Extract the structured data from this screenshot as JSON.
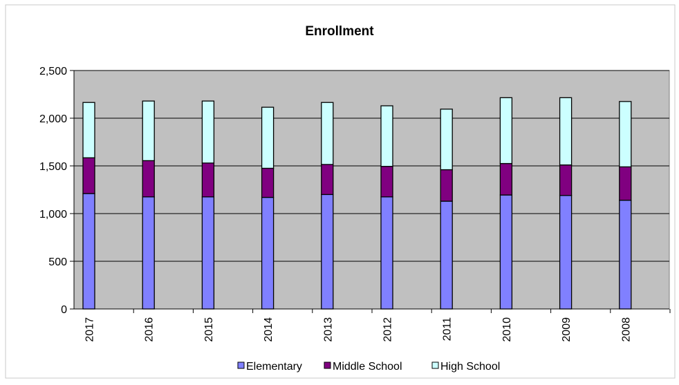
{
  "chart_data": {
    "type": "bar",
    "stacked": true,
    "title": "Enrollment",
    "xlabel": "",
    "ylabel": "",
    "categories": [
      "2017",
      "2016",
      "2015",
      "2014",
      "2013",
      "2012",
      "2011",
      "2010",
      "2009",
      "2008"
    ],
    "series": [
      {
        "name": "Elementary",
        "color": "#8080ff",
        "values": [
          1210,
          1175,
          1175,
          1170,
          1200,
          1175,
          1130,
          1195,
          1190,
          1140
        ]
      },
      {
        "name": "Middle School",
        "color": "#800080",
        "values": [
          375,
          380,
          355,
          305,
          315,
          320,
          330,
          330,
          320,
          350
        ]
      },
      {
        "name": "High School",
        "color": "#ccffff",
        "values": [
          580,
          625,
          650,
          640,
          650,
          635,
          635,
          690,
          705,
          685
        ]
      }
    ],
    "ylim": [
      0,
      2500
    ],
    "y_ticks": [
      "0",
      "500",
      "1,000",
      "1,500",
      "2,000",
      "2,500"
    ],
    "grid": true,
    "plot_background": "#c0c0c0",
    "legend_position": "bottom"
  }
}
